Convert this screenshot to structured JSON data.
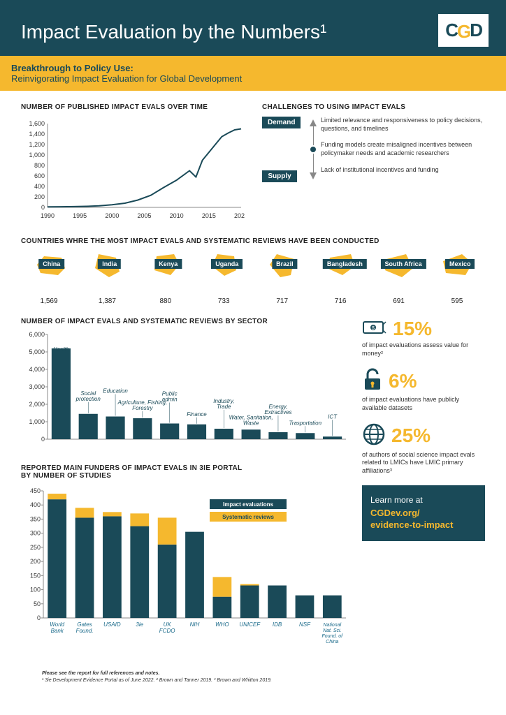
{
  "header": {
    "logo": "CGD",
    "title": "Impact Evaluation by the Numbers¹",
    "subtitle_line1": "Breakthrough to Policy Use:",
    "subtitle_line2": "Reinvigorating Impact Evaluation for Global Development"
  },
  "line_chart": {
    "title": "NUMBER OF PUBLISHED IMPACT EVALS OVER TIME",
    "ylim": [
      0,
      1600
    ],
    "ytick_step": 200,
    "xlim": [
      1990,
      2020
    ],
    "xtick_step": 5,
    "points": [
      [
        1990,
        10
      ],
      [
        1992,
        12
      ],
      [
        1994,
        15
      ],
      [
        1996,
        20
      ],
      [
        1998,
        30
      ],
      [
        2000,
        50
      ],
      [
        2002,
        80
      ],
      [
        2004,
        140
      ],
      [
        2006,
        230
      ],
      [
        2008,
        380
      ],
      [
        2010,
        520
      ],
      [
        2012,
        700
      ],
      [
        2013,
        580
      ],
      [
        2014,
        900
      ],
      [
        2015,
        1050
      ],
      [
        2016,
        1200
      ],
      [
        2017,
        1350
      ],
      [
        2018,
        1420
      ],
      [
        2019,
        1480
      ],
      [
        2020,
        1500
      ]
    ],
    "line_color": "#1a4a58",
    "line_width": 2,
    "axis_color": "#888",
    "tick_fontsize": 9
  },
  "challenges": {
    "title": "CHALLENGES TO USING IMPACT EVALS",
    "items": [
      {
        "badge": "Demand",
        "text": "Limited relevance and responsiveness to policy decisions, questions, and timelines"
      },
      {
        "badge": "",
        "text": "Funding models create misaligned incentives between policymaker needs and academic researchers"
      },
      {
        "badge": "Supply",
        "text": "Lack of institutional incentives and funding"
      }
    ],
    "badge_bg": "#1a4a58",
    "badge_color": "#ffffff"
  },
  "countries": {
    "title": "COUNTRIES WHRE THE MOST IMPACT EVALS AND SYSTEMATIC REVIEWS HAVE BEEN CONDUCTED",
    "items": [
      {
        "name": "China",
        "count": "1,569"
      },
      {
        "name": "India",
        "count": "1,387"
      },
      {
        "name": "Kenya",
        "count": "880"
      },
      {
        "name": "Uganda",
        "count": "733"
      },
      {
        "name": "Brazil",
        "count": "717"
      },
      {
        "name": "Bangladesh",
        "count": "716"
      },
      {
        "name": "South Africa",
        "count": "691"
      },
      {
        "name": "Mexico",
        "count": "595"
      }
    ],
    "shape_color": "#f5b82e",
    "label_bg": "#1a4a58"
  },
  "sector_chart": {
    "title": "NUMBER OF IMPACT EVALS AND SYSTEMATIC REVIEWS BY SECTOR",
    "ylim": [
      0,
      6000
    ],
    "ytick_step": 1000,
    "bars": [
      {
        "label": "Health",
        "value": 5200
      },
      {
        "label": "Social protection",
        "value": 1450
      },
      {
        "label": "Education",
        "value": 1300
      },
      {
        "label": "Agriculture, Fishing, Forestry",
        "value": 1200
      },
      {
        "label": "Public admin",
        "value": 900
      },
      {
        "label": "Finance",
        "value": 850
      },
      {
        "label": "Industry, Trade",
        "value": 600
      },
      {
        "label": "Water, Sanitation, Waste",
        "value": 550
      },
      {
        "label": "Energy, Extractives",
        "value": 400
      },
      {
        "label": "Trasportation",
        "value": 350
      },
      {
        "label": "ICT",
        "value": 150
      }
    ],
    "bar_color": "#1a4a58",
    "label_color": "#1a4a58",
    "label_fontsize": 8,
    "axis_color": "#888"
  },
  "funders_chart": {
    "title": "REPORTED MAIN FUNDERS OF IMPACT EVALS IN 3IE PORTAL BY NUMBER OF STUDIES",
    "ylim": [
      0,
      450
    ],
    "ytick_step": 50,
    "legend": [
      {
        "label": "Impact evaluations",
        "color": "#1a4a58"
      },
      {
        "label": "Systematic reviews",
        "color": "#f5b82e"
      }
    ],
    "bars": [
      {
        "label": "World Bank",
        "ie": 420,
        "sr": 20
      },
      {
        "label": "Gates Found.",
        "ie": 355,
        "sr": 35
      },
      {
        "label": "USAID",
        "ie": 360,
        "sr": 15
      },
      {
        "label": "3ie",
        "ie": 325,
        "sr": 45
      },
      {
        "label": "UK FCDO",
        "ie": 260,
        "sr": 95
      },
      {
        "label": "NIH",
        "ie": 305,
        "sr": 0
      },
      {
        "label": "WHO",
        "ie": 75,
        "sr": 70
      },
      {
        "label": "UNICEF",
        "ie": 115,
        "sr": 5
      },
      {
        "label": "IDB",
        "ie": 115,
        "sr": 0
      },
      {
        "label": "NSF",
        "ie": 80,
        "sr": 0
      },
      {
        "label": "National Nat. Sci. Found. of China",
        "ie": 80,
        "sr": 0
      }
    ],
    "label_color": "#1a6a8a",
    "label_fontsize": 8
  },
  "stats": [
    {
      "icon": "money",
      "pct": "15%",
      "text": "of impact evaluations assess value for money²"
    },
    {
      "icon": "lock",
      "pct": "6%",
      "text": "of impact evaluations have publicly available datasets"
    },
    {
      "icon": "globe",
      "pct": "25%",
      "text": "of authors of social science impact evals related to LMICs have LMIC primary affiliations³"
    }
  ],
  "learn": {
    "line1": "Learn more at",
    "line2": "CGDev.org/\nevidence-to-impact"
  },
  "footnotes": {
    "l1": "Please see the report for full references and notes.",
    "l2": "¹ 3ie Development Evidence Portal as of June 2022.   ² Brown and Tanner 2019.   ³ Brown and Whitton 2019."
  },
  "colors": {
    "primary": "#1a4a58",
    "accent": "#f5b82e",
    "bg": "#ffffff"
  }
}
